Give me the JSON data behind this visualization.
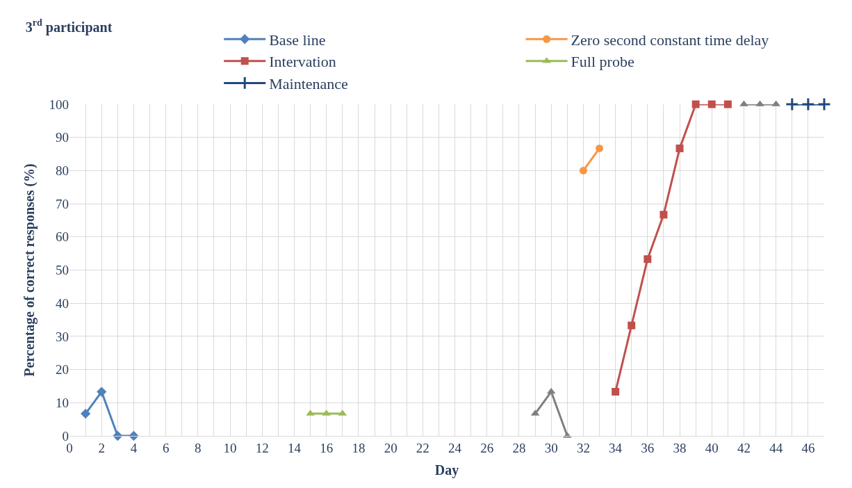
{
  "chart_data": {
    "type": "line",
    "title": "3$^{rd}$ participant",
    "xlabel": "Day",
    "ylabel": "Percentage of correct responses (%)",
    "xlim": [
      0,
      47
    ],
    "xticks": [
      0,
      2,
      4,
      6,
      8,
      10,
      12,
      14,
      16,
      18,
      20,
      22,
      24,
      26,
      28,
      30,
      32,
      34,
      36,
      38,
      40,
      42,
      44,
      46
    ],
    "ylim": [
      0,
      100
    ],
    "yticks": [
      0,
      10,
      20,
      30,
      40,
      50,
      60,
      70,
      80,
      90,
      100
    ],
    "grid": true,
    "legend": "top",
    "series": [
      {
        "name": "Base line",
        "color": "#4f81bd",
        "marker": "diamond",
        "x": [
          1,
          2,
          3,
          4
        ],
        "values": [
          6.7,
          13.3,
          0,
          0
        ]
      },
      {
        "name": "Zero second constant time delay",
        "color": "#f79646",
        "marker": "circle",
        "x": [
          32,
          33
        ],
        "values": [
          80,
          86.7
        ]
      },
      {
        "name": "Intervation",
        "color": "#c0504d",
        "marker": "square",
        "x": [
          34,
          35,
          36,
          37,
          38,
          39,
          40,
          41
        ],
        "values": [
          13.3,
          33.3,
          53.3,
          66.7,
          86.7,
          100,
          100,
          100
        ]
      },
      {
        "name": "Full probe",
        "color": "#9bbb59",
        "marker": "triangle",
        "x": [
          15,
          16,
          17
        ],
        "values": [
          6.7,
          6.7,
          6.7
        ]
      },
      {
        "name": "Maintenance",
        "color": "#1f497d",
        "marker": "cross",
        "x": [
          45,
          46,
          47
        ],
        "values": [
          100,
          100,
          100
        ]
      },
      {
        "color": "#7f7f7f",
        "marker": "triangle",
        "x": [
          29,
          30,
          31,
          36,
          42,
          43,
          44
        ],
        "values": [
          6.7,
          13.3,
          0,
          null,
          100,
          100,
          100
        ]
      }
    ]
  }
}
